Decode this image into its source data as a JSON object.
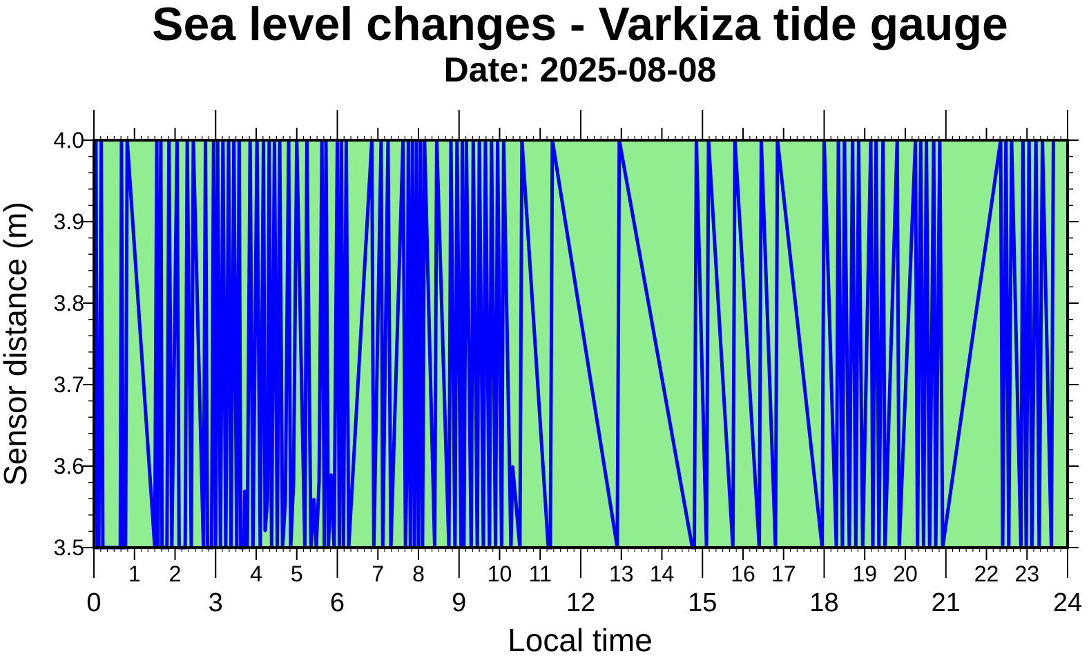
{
  "chart_data": {
    "type": "area",
    "title": "Sea level changes - Varkiza tide gauge",
    "subtitle": "Date: 2025-08-08",
    "xlabel": "Local time",
    "ylabel": "Sensor distance (m)",
    "xlim": [
      0,
      24
    ],
    "ylim": [
      3.5,
      4.0
    ],
    "y_ticks": [
      "3.5",
      "3.6",
      "3.7",
      "3.8",
      "3.9",
      "4.0"
    ],
    "x_major_ticks": [
      "0",
      "3",
      "6",
      "9",
      "12",
      "15",
      "18",
      "21",
      "24"
    ],
    "x_minor_labels": [
      "1",
      "2",
      "4",
      "5",
      "7",
      "8",
      "10",
      "11",
      "13",
      "14",
      "16",
      "17",
      "19",
      "20",
      "22",
      "23"
    ],
    "grid": false,
    "legend": "none",
    "colors": {
      "fill": "#90ee90",
      "line": "#0000ff",
      "frame": "#000000"
    },
    "series": [
      {
        "x": [
          0.05,
          0.08,
          0.12,
          0.18,
          0.22,
          0.65,
          0.68,
          0.72,
          0.78,
          0.82,
          1.5,
          1.55,
          1.58,
          1.65,
          1.68,
          1.8,
          1.85,
          1.92,
          2.05,
          2.1,
          2.25,
          2.3,
          2.4,
          2.45,
          2.7,
          2.75,
          2.8,
          2.9,
          2.95,
          3.0,
          3.05,
          3.12,
          3.18,
          3.25,
          3.32,
          3.38,
          3.45,
          3.52,
          3.58,
          3.62,
          3.7,
          3.72,
          3.78,
          3.85,
          3.92,
          4.02,
          4.1,
          4.18,
          4.22,
          4.28,
          4.32,
          4.38,
          4.45,
          4.52,
          4.58,
          4.65,
          4.72,
          4.8,
          4.85,
          4.92,
          5.0,
          5.2,
          5.25,
          5.35,
          5.42,
          5.48,
          5.55,
          5.62,
          5.68,
          5.72,
          5.78,
          5.85,
          5.92,
          6.0,
          6.05,
          6.1,
          6.15,
          6.22,
          6.28,
          6.85,
          6.9,
          7.08,
          7.12,
          7.25,
          7.32,
          7.62,
          7.68,
          7.72,
          7.75,
          7.8,
          7.85,
          7.9,
          7.95,
          8.0,
          8.05,
          8.1,
          8.15,
          8.4,
          8.45,
          8.75,
          8.8,
          8.9,
          8.95,
          9.05,
          9.08,
          9.12,
          9.18,
          9.3,
          9.35,
          9.45,
          9.5,
          9.6,
          9.65,
          9.75,
          9.8,
          9.9,
          9.95,
          10.05,
          10.1,
          10.28,
          10.32,
          10.5,
          10.55,
          11.2,
          11.25,
          11.3,
          12.9,
          12.95,
          14.75,
          14.8,
          14.85,
          15.1,
          15.15,
          15.75,
          15.8,
          16.4,
          16.45,
          16.8,
          16.85,
          17.95,
          18.0,
          18.3,
          18.35,
          18.45,
          18.5,
          18.62,
          18.7,
          18.78,
          18.85,
          18.95,
          19.15,
          19.2,
          19.28,
          19.35,
          19.45,
          19.5,
          19.8,
          19.85,
          20.25,
          20.3,
          20.38,
          20.45,
          20.52,
          20.6,
          20.7,
          20.75,
          20.85,
          20.92,
          22.35,
          22.4,
          22.48,
          22.55,
          22.62,
          22.85,
          22.9,
          22.98,
          23.05,
          23.12,
          23.22,
          23.3,
          23.38,
          23.6,
          23.65
        ],
        "y": [
          4.0,
          3.5,
          3.5,
          4.0,
          3.5,
          3.5,
          4.0,
          3.5,
          3.5,
          4.0,
          3.5,
          4.0,
          3.5,
          4.0,
          3.5,
          3.5,
          4.0,
          3.5,
          4.0,
          3.5,
          3.5,
          4.0,
          3.5,
          4.0,
          3.5,
          4.0,
          3.5,
          3.5,
          4.0,
          3.5,
          4.0,
          3.5,
          4.0,
          3.5,
          4.0,
          3.5,
          4.0,
          3.5,
          4.0,
          3.5,
          3.5,
          3.57,
          3.5,
          4.0,
          3.5,
          4.0,
          3.5,
          4.0,
          3.52,
          3.56,
          4.0,
          3.5,
          4.0,
          3.5,
          4.0,
          3.5,
          3.56,
          4.0,
          3.5,
          3.58,
          4.0,
          3.5,
          4.0,
          3.5,
          3.56,
          3.5,
          3.58,
          4.0,
          3.5,
          4.0,
          3.5,
          3.59,
          3.5,
          4.0,
          3.5,
          4.0,
          3.5,
          4.0,
          3.5,
          4.0,
          3.5,
          4.0,
          3.5,
          4.0,
          3.5,
          4.0,
          3.5,
          3.62,
          4.0,
          3.5,
          4.0,
          3.5,
          4.0,
          3.5,
          4.0,
          3.5,
          4.0,
          3.5,
          4.0,
          3.5,
          4.0,
          3.5,
          4.0,
          3.5,
          4.0,
          3.5,
          4.0,
          3.5,
          4.0,
          3.5,
          4.0,
          3.5,
          4.0,
          3.5,
          4.0,
          3.5,
          4.0,
          3.5,
          4.0,
          3.5,
          3.6,
          3.5,
          4.0,
          3.5,
          3.5,
          4.0,
          3.5,
          4.0,
          3.5,
          3.5,
          4.0,
          3.5,
          4.0,
          3.5,
          4.0,
          3.5,
          4.0,
          3.5,
          4.0,
          3.5,
          4.0,
          3.5,
          4.0,
          3.5,
          4.0,
          3.5,
          4.0,
          3.5,
          4.0,
          3.5,
          4.0,
          3.5,
          4.0,
          3.5,
          4.0,
          3.5,
          4.0,
          3.5,
          4.0,
          3.5,
          4.0,
          3.5,
          4.0,
          3.5,
          4.0,
          3.5,
          4.0,
          3.5,
          4.0,
          3.5,
          4.0,
          3.5,
          4.0,
          3.5,
          4.0,
          3.5,
          4.0,
          3.5,
          4.0,
          3.5,
          4.0,
          3.5,
          4.0
        ]
      }
    ]
  }
}
